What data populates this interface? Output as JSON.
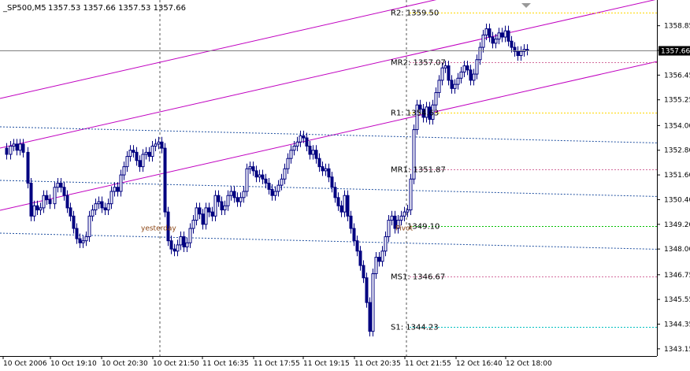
{
  "header": {
    "symbol_text": "_SP500,M5",
    "ohlc_text": "1357.53 1357.66 1357.53 1357.66"
  },
  "colors": {
    "background": "#ffffff",
    "axis": "#000000",
    "candle": "#000080",
    "channel": "#c000c0",
    "lower_channel": "#2050a0",
    "pivot": "#ffd700",
    "mid_pivot": "#d36c9c",
    "s1": "#00c0c0",
    "pivot_green": "#00c000",
    "price_label_bg": "#000000",
    "price_label_text": "#ffffff",
    "text_brown": "#8b4513"
  },
  "chart_data": {
    "type": "candlestick",
    "timeframe": "M5",
    "ylim": [
      1342.8,
      1360.1
    ],
    "y_ticks": [
      "1358.85",
      "1357.65",
      "1356.45",
      "1355.25",
      "1354.00",
      "1352.80",
      "1351.60",
      "1350.40",
      "1349.20",
      "1348.00",
      "1346.75",
      "1345.55",
      "1344.35",
      "1343.15"
    ],
    "x_ticks": [
      "10 Oct 2006",
      "10 Oct 19:10",
      "10 Oct 20:30",
      "10 Oct 21:50",
      "11 Oct 16:35",
      "11 Oct 17:55",
      "11 Oct 19:15",
      "11 Oct 20:35",
      "11 Oct 21:55",
      "12 Oct 16:40",
      "12 Oct 18:00"
    ],
    "current_price": "1357.66",
    "levels": [
      {
        "name": "R2",
        "label": "R2: 1359.50",
        "value": 1359.5,
        "kind": "pivot"
      },
      {
        "name": "MR2",
        "label": "MR2: 1357.07",
        "value": 1357.07,
        "kind": "mid_pivot"
      },
      {
        "name": "R1",
        "label": "R1: 1354.63",
        "value": 1354.63,
        "kind": "pivot"
      },
      {
        "name": "MR1",
        "label": "MR1: 1351.87",
        "value": 1351.87,
        "kind": "mid_pivot"
      },
      {
        "name": "P",
        "label": "1349.10",
        "value": 1349.1,
        "kind": "pivot_green"
      },
      {
        "name": "MS1",
        "label": "MS1: 1346.67",
        "value": 1346.67,
        "kind": "mid_pivot"
      },
      {
        "name": "S1",
        "label": "S1: 1344.23",
        "value": 1344.23,
        "kind": "s1"
      }
    ],
    "annotations": [
      "yesterday",
      "Pivot"
    ],
    "close_path": [
      [
        0,
        1352.9
      ],
      [
        5,
        1352.6
      ],
      [
        10,
        1353.0
      ],
      [
        14,
        1353.1
      ],
      [
        18,
        1352.8
      ],
      [
        22,
        1353.1
      ],
      [
        26,
        1352.7
      ],
      [
        32,
        1351.2
      ],
      [
        36,
        1349.6
      ],
      [
        40,
        1350.1
      ],
      [
        44,
        1349.9
      ],
      [
        48,
        1350.0
      ],
      [
        52,
        1350.6
      ],
      [
        56,
        1350.4
      ],
      [
        60,
        1350.2
      ],
      [
        66,
        1351.0
      ],
      [
        70,
        1351.2
      ],
      [
        74,
        1351.0
      ],
      [
        78,
        1350.6
      ],
      [
        82,
        1350.0
      ],
      [
        86,
        1349.6
      ],
      [
        90,
        1349.0
      ],
      [
        94,
        1348.5
      ],
      [
        98,
        1348.3
      ],
      [
        102,
        1348.4
      ],
      [
        106,
        1348.6
      ],
      [
        110,
        1349.6
      ],
      [
        114,
        1349.9
      ],
      [
        118,
        1350.2
      ],
      [
        122,
        1350.3
      ],
      [
        126,
        1350.0
      ],
      [
        130,
        1349.9
      ],
      [
        134,
        1350.2
      ],
      [
        138,
        1350.8
      ],
      [
        142,
        1351.0
      ],
      [
        146,
        1350.8
      ],
      [
        150,
        1351.6
      ],
      [
        154,
        1352.0
      ],
      [
        158,
        1352.5
      ],
      [
        162,
        1352.8
      ],
      [
        166,
        1352.7
      ],
      [
        170,
        1352.3
      ],
      [
        174,
        1352.0
      ],
      [
        178,
        1352.6
      ],
      [
        182,
        1352.7
      ],
      [
        186,
        1352.5
      ],
      [
        190,
        1353.0
      ],
      [
        194,
        1353.1
      ],
      [
        198,
        1353.2
      ],
      [
        202,
        1352.9
      ],
      [
        206,
        1349.8
      ],
      [
        210,
        1348.4
      ],
      [
        214,
        1348.0
      ],
      [
        218,
        1347.9
      ],
      [
        222,
        1348.2
      ],
      [
        226,
        1348.6
      ],
      [
        230,
        1348.1
      ],
      [
        234,
        1348.3
      ],
      [
        238,
        1349.0
      ],
      [
        242,
        1349.4
      ],
      [
        246,
        1350.0
      ],
      [
        250,
        1349.7
      ],
      [
        254,
        1349.2
      ],
      [
        258,
        1350.0
      ],
      [
        262,
        1349.8
      ],
      [
        266,
        1349.6
      ],
      [
        270,
        1350.6
      ],
      [
        274,
        1350.3
      ],
      [
        278,
        1349.9
      ],
      [
        282,
        1350.1
      ],
      [
        286,
        1350.6
      ],
      [
        290,
        1350.8
      ],
      [
        294,
        1350.5
      ],
      [
        298,
        1350.3
      ],
      [
        302,
        1350.5
      ],
      [
        306,
        1350.8
      ],
      [
        310,
        1351.9
      ],
      [
        314,
        1352.0
      ],
      [
        318,
        1351.8
      ],
      [
        322,
        1351.5
      ],
      [
        326,
        1351.6
      ],
      [
        330,
        1351.4
      ],
      [
        334,
        1351.2
      ],
      [
        338,
        1350.9
      ],
      [
        342,
        1350.6
      ],
      [
        346,
        1350.8
      ],
      [
        350,
        1351.1
      ],
      [
        354,
        1351.4
      ],
      [
        358,
        1351.9
      ],
      [
        362,
        1352.4
      ],
      [
        366,
        1352.8
      ],
      [
        370,
        1353.0
      ],
      [
        374,
        1353.2
      ],
      [
        378,
        1353.5
      ],
      [
        382,
        1353.4
      ],
      [
        386,
        1353.0
      ],
      [
        390,
        1352.6
      ],
      [
        394,
        1352.8
      ],
      [
        398,
        1352.4
      ],
      [
        402,
        1352.0
      ],
      [
        406,
        1351.8
      ],
      [
        410,
        1351.9
      ],
      [
        414,
        1351.5
      ],
      [
        418,
        1351.0
      ],
      [
        422,
        1350.5
      ],
      [
        426,
        1350.1
      ],
      [
        430,
        1349.8
      ],
      [
        434,
        1350.6
      ],
      [
        438,
        1349.6
      ],
      [
        442,
        1349.0
      ],
      [
        446,
        1348.4
      ],
      [
        450,
        1347.9
      ],
      [
        454,
        1347.2
      ],
      [
        458,
        1346.6
      ],
      [
        462,
        1345.4
      ],
      [
        466,
        1344.0
      ],
      [
        470,
        1346.8
      ],
      [
        474,
        1347.6
      ],
      [
        478,
        1347.4
      ],
      [
        482,
        1347.9
      ],
      [
        486,
        1348.6
      ],
      [
        490,
        1349.4
      ],
      [
        494,
        1349.6
      ],
      [
        498,
        1349.0
      ],
      [
        502,
        1349.4
      ],
      [
        506,
        1349.6
      ],
      [
        510,
        1349.8
      ],
      [
        514,
        1349.9
      ],
      [
        518,
        1351.4
      ],
      [
        522,
        1353.8
      ],
      [
        526,
        1355.0
      ],
      [
        530,
        1354.8
      ],
      [
        534,
        1354.4
      ],
      [
        538,
        1354.9
      ],
      [
        542,
        1354.3
      ],
      [
        546,
        1355.0
      ],
      [
        550,
        1355.6
      ],
      [
        554,
        1356.2
      ],
      [
        558,
        1356.8
      ],
      [
        562,
        1356.9
      ],
      [
        566,
        1356.2
      ],
      [
        570,
        1355.8
      ],
      [
        574,
        1356.0
      ],
      [
        578,
        1356.3
      ],
      [
        582,
        1356.6
      ],
      [
        586,
        1356.9
      ],
      [
        590,
        1356.7
      ],
      [
        594,
        1356.2
      ],
      [
        598,
        1356.5
      ],
      [
        602,
        1357.2
      ],
      [
        606,
        1357.8
      ],
      [
        610,
        1358.4
      ],
      [
        614,
        1358.7
      ],
      [
        618,
        1358.3
      ],
      [
        622,
        1358.0
      ],
      [
        626,
        1358.2
      ],
      [
        630,
        1358.5
      ],
      [
        634,
        1358.3
      ],
      [
        638,
        1358.6
      ],
      [
        642,
        1358.1
      ],
      [
        646,
        1357.8
      ],
      [
        650,
        1357.6
      ],
      [
        654,
        1357.4
      ],
      [
        658,
        1357.6
      ],
      [
        662,
        1357.7
      ],
      [
        666,
        1357.66
      ]
    ]
  }
}
